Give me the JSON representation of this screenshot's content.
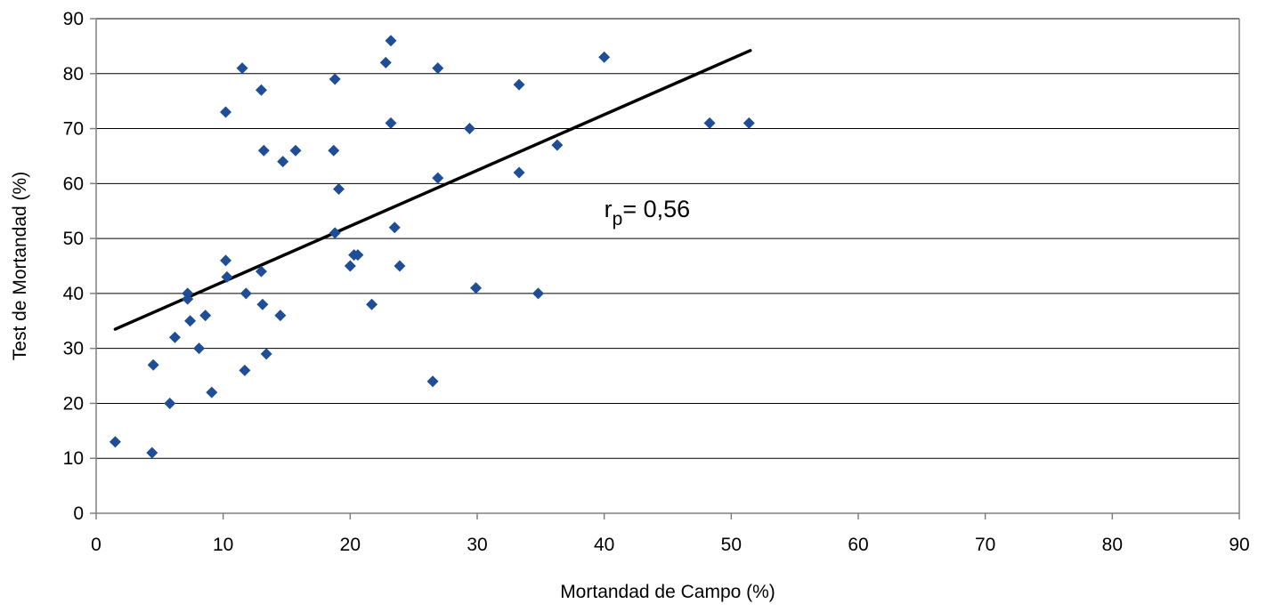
{
  "chart_data": {
    "type": "scatter",
    "title": "",
    "xlabel": "Mortandad de Campo (%)",
    "ylabel": "Test de Mortandad (%)",
    "xlim": [
      0,
      90
    ],
    "ylim": [
      0,
      90
    ],
    "xticks": [
      0,
      10,
      20,
      30,
      40,
      50,
      60,
      70,
      80,
      90
    ],
    "yticks": [
      0,
      10,
      20,
      30,
      40,
      50,
      60,
      70,
      80,
      90
    ],
    "grid": "horizontal",
    "legend": "none",
    "colors": {
      "points": "#1f4e96",
      "trendline": "#000000",
      "grid": "#000000",
      "axis": "#808080"
    },
    "series": [
      {
        "marker": "diamond",
        "points": [
          [
            1.5,
            13
          ],
          [
            4.4,
            11
          ],
          [
            4.5,
            27
          ],
          [
            5.8,
            20
          ],
          [
            6.2,
            32
          ],
          [
            7.2,
            40
          ],
          [
            7.2,
            39
          ],
          [
            7.4,
            35
          ],
          [
            8.1,
            30
          ],
          [
            8.6,
            36
          ],
          [
            9.1,
            22
          ],
          [
            10.2,
            73
          ],
          [
            10.2,
            46
          ],
          [
            10.3,
            43
          ],
          [
            11.5,
            81
          ],
          [
            11.7,
            26
          ],
          [
            11.8,
            40
          ],
          [
            13.0,
            77
          ],
          [
            13.0,
            44
          ],
          [
            13.1,
            38
          ],
          [
            13.2,
            66
          ],
          [
            13.4,
            29
          ],
          [
            14.5,
            36
          ],
          [
            14.7,
            64
          ],
          [
            15.7,
            66
          ],
          [
            18.7,
            66
          ],
          [
            18.8,
            79
          ],
          [
            18.8,
            51
          ],
          [
            19.1,
            59
          ],
          [
            20.0,
            45
          ],
          [
            20.3,
            47
          ],
          [
            20.6,
            47
          ],
          [
            21.7,
            38
          ],
          [
            22.8,
            82
          ],
          [
            23.2,
            86
          ],
          [
            23.2,
            71
          ],
          [
            23.5,
            52
          ],
          [
            23.9,
            45
          ],
          [
            26.5,
            24
          ],
          [
            26.9,
            81
          ],
          [
            26.9,
            61
          ],
          [
            29.4,
            70
          ],
          [
            29.9,
            41
          ],
          [
            33.3,
            78
          ],
          [
            33.3,
            62
          ],
          [
            34.8,
            40
          ],
          [
            36.3,
            67
          ],
          [
            40.0,
            83
          ],
          [
            48.3,
            71
          ],
          [
            51.4,
            71
          ]
        ]
      }
    ],
    "trendline": {
      "x": [
        1.5,
        51.5
      ],
      "y": [
        33.5,
        84.2
      ]
    },
    "annotations": [
      {
        "text_main": "r",
        "text_sub": "p",
        "text_rest": "= 0,56",
        "x": 40.0,
        "y": 55.5
      }
    ]
  }
}
